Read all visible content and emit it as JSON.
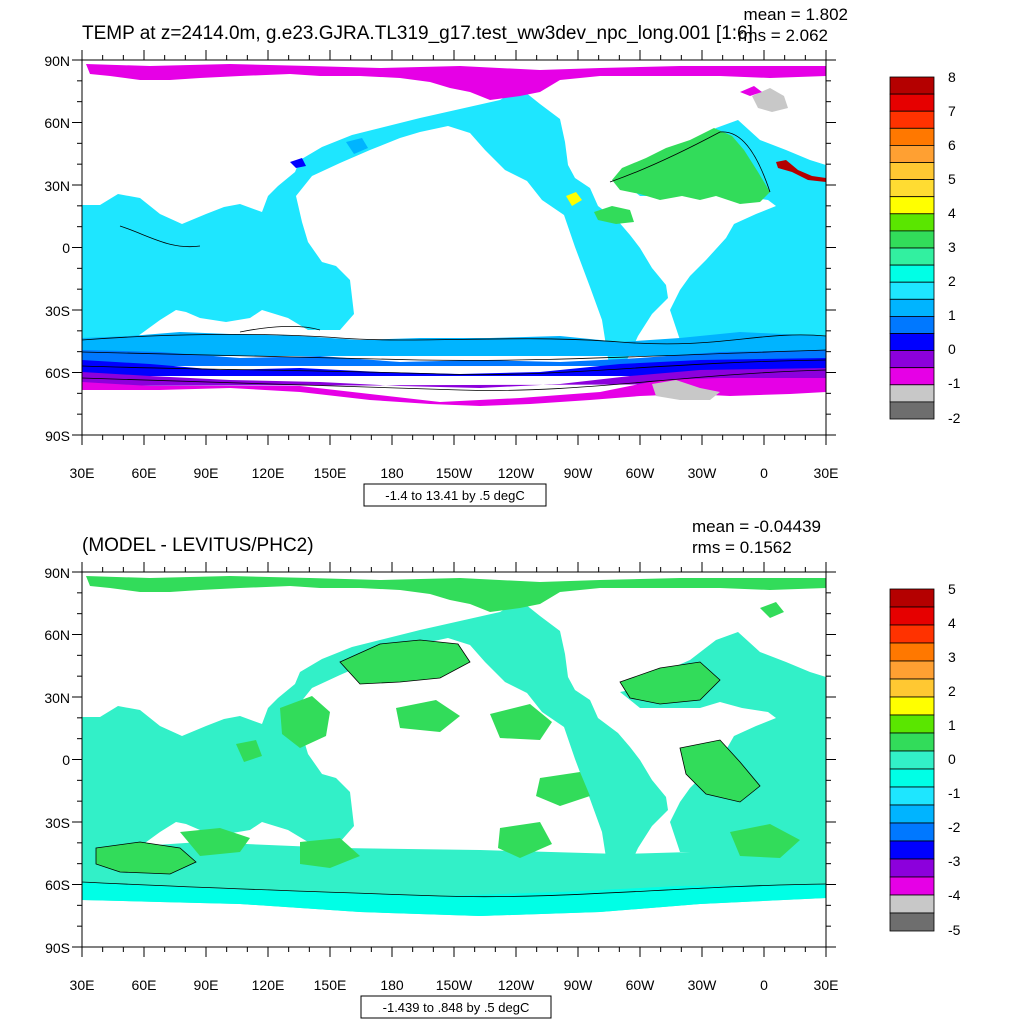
{
  "panels": [
    {
      "title": "TEMP at z=2414.0m, g.e23.GJRA.TL319_g17.test_ww3dev_npc_long.001 [1:6]",
      "mean_label": "mean = 1.802",
      "rms_label": "rms = 2.062",
      "contour_info": "-1.4 to 13.41 by .5 degC",
      "base_color": "#1ee6ff",
      "colorbar": {
        "labels": [
          "8",
          "7",
          "6",
          "5",
          "4",
          "3",
          "2",
          "1",
          "0",
          "-1",
          "-2"
        ],
        "colors": [
          "#b40000",
          "#e60000",
          "#ff3200",
          "#ff7800",
          "#ffa032",
          "#ffc832",
          "#ffdc32",
          "#ffff00",
          "#5ae600",
          "#32dc5a",
          "#32f0a0",
          "#00ffe6",
          "#1ee6ff",
          "#00b4ff",
          "#0078ff",
          "#0000ff",
          "#8c00dc",
          "#e600e6",
          "#c8c8c8",
          "#6e6e6e"
        ]
      }
    },
    {
      "title": "(MODEL - LEVITUS/PHC2)",
      "mean_label": "mean = -0.04439",
      "rms_label": "rms = 0.1562",
      "contour_info": "-1.439 to .848 by .5 degC",
      "base_color": "#32f0c8",
      "colorbar": {
        "labels": [
          "5",
          "4",
          "3",
          "2",
          "1",
          "0",
          "-1",
          "-2",
          "-3",
          "-4",
          "-5"
        ],
        "colors": [
          "#b40000",
          "#e60000",
          "#ff3200",
          "#ff7800",
          "#ffa032",
          "#ffc832",
          "#ffff00",
          "#5ae600",
          "#32dc5a",
          "#32f0c8",
          "#00ffe6",
          "#1ee6ff",
          "#00b4ff",
          "#0078ff",
          "#0000ff",
          "#8c00dc",
          "#e600e6",
          "#c8c8c8",
          "#6e6e6e"
        ]
      }
    }
  ],
  "axes": {
    "x_labels": [
      "30E",
      "60E",
      "90E",
      "120E",
      "150E",
      "180",
      "150W",
      "120W",
      "90W",
      "60W",
      "30W",
      "0",
      "30E"
    ],
    "y_labels": [
      "90N",
      "60N",
      "30N",
      "0",
      "30S",
      "60S",
      "90S"
    ]
  },
  "field_colors": {
    "top": {
      "arctic": "#e600e6",
      "south_band_1": "#00b4ff",
      "south_band_2": "#0078ff",
      "south_band_3": "#0000ff",
      "south_band_4": "#8c00dc",
      "south_band_5": "#e600e6",
      "atlantic": "#32dc5a",
      "med": "#b40000",
      "weddell": "#c8c8c8",
      "caribbean": "#ffff00"
    },
    "bottom": {
      "arctic": "#32dc5a",
      "southern": "#00ffe6",
      "patch": "#32dc5a"
    }
  }
}
